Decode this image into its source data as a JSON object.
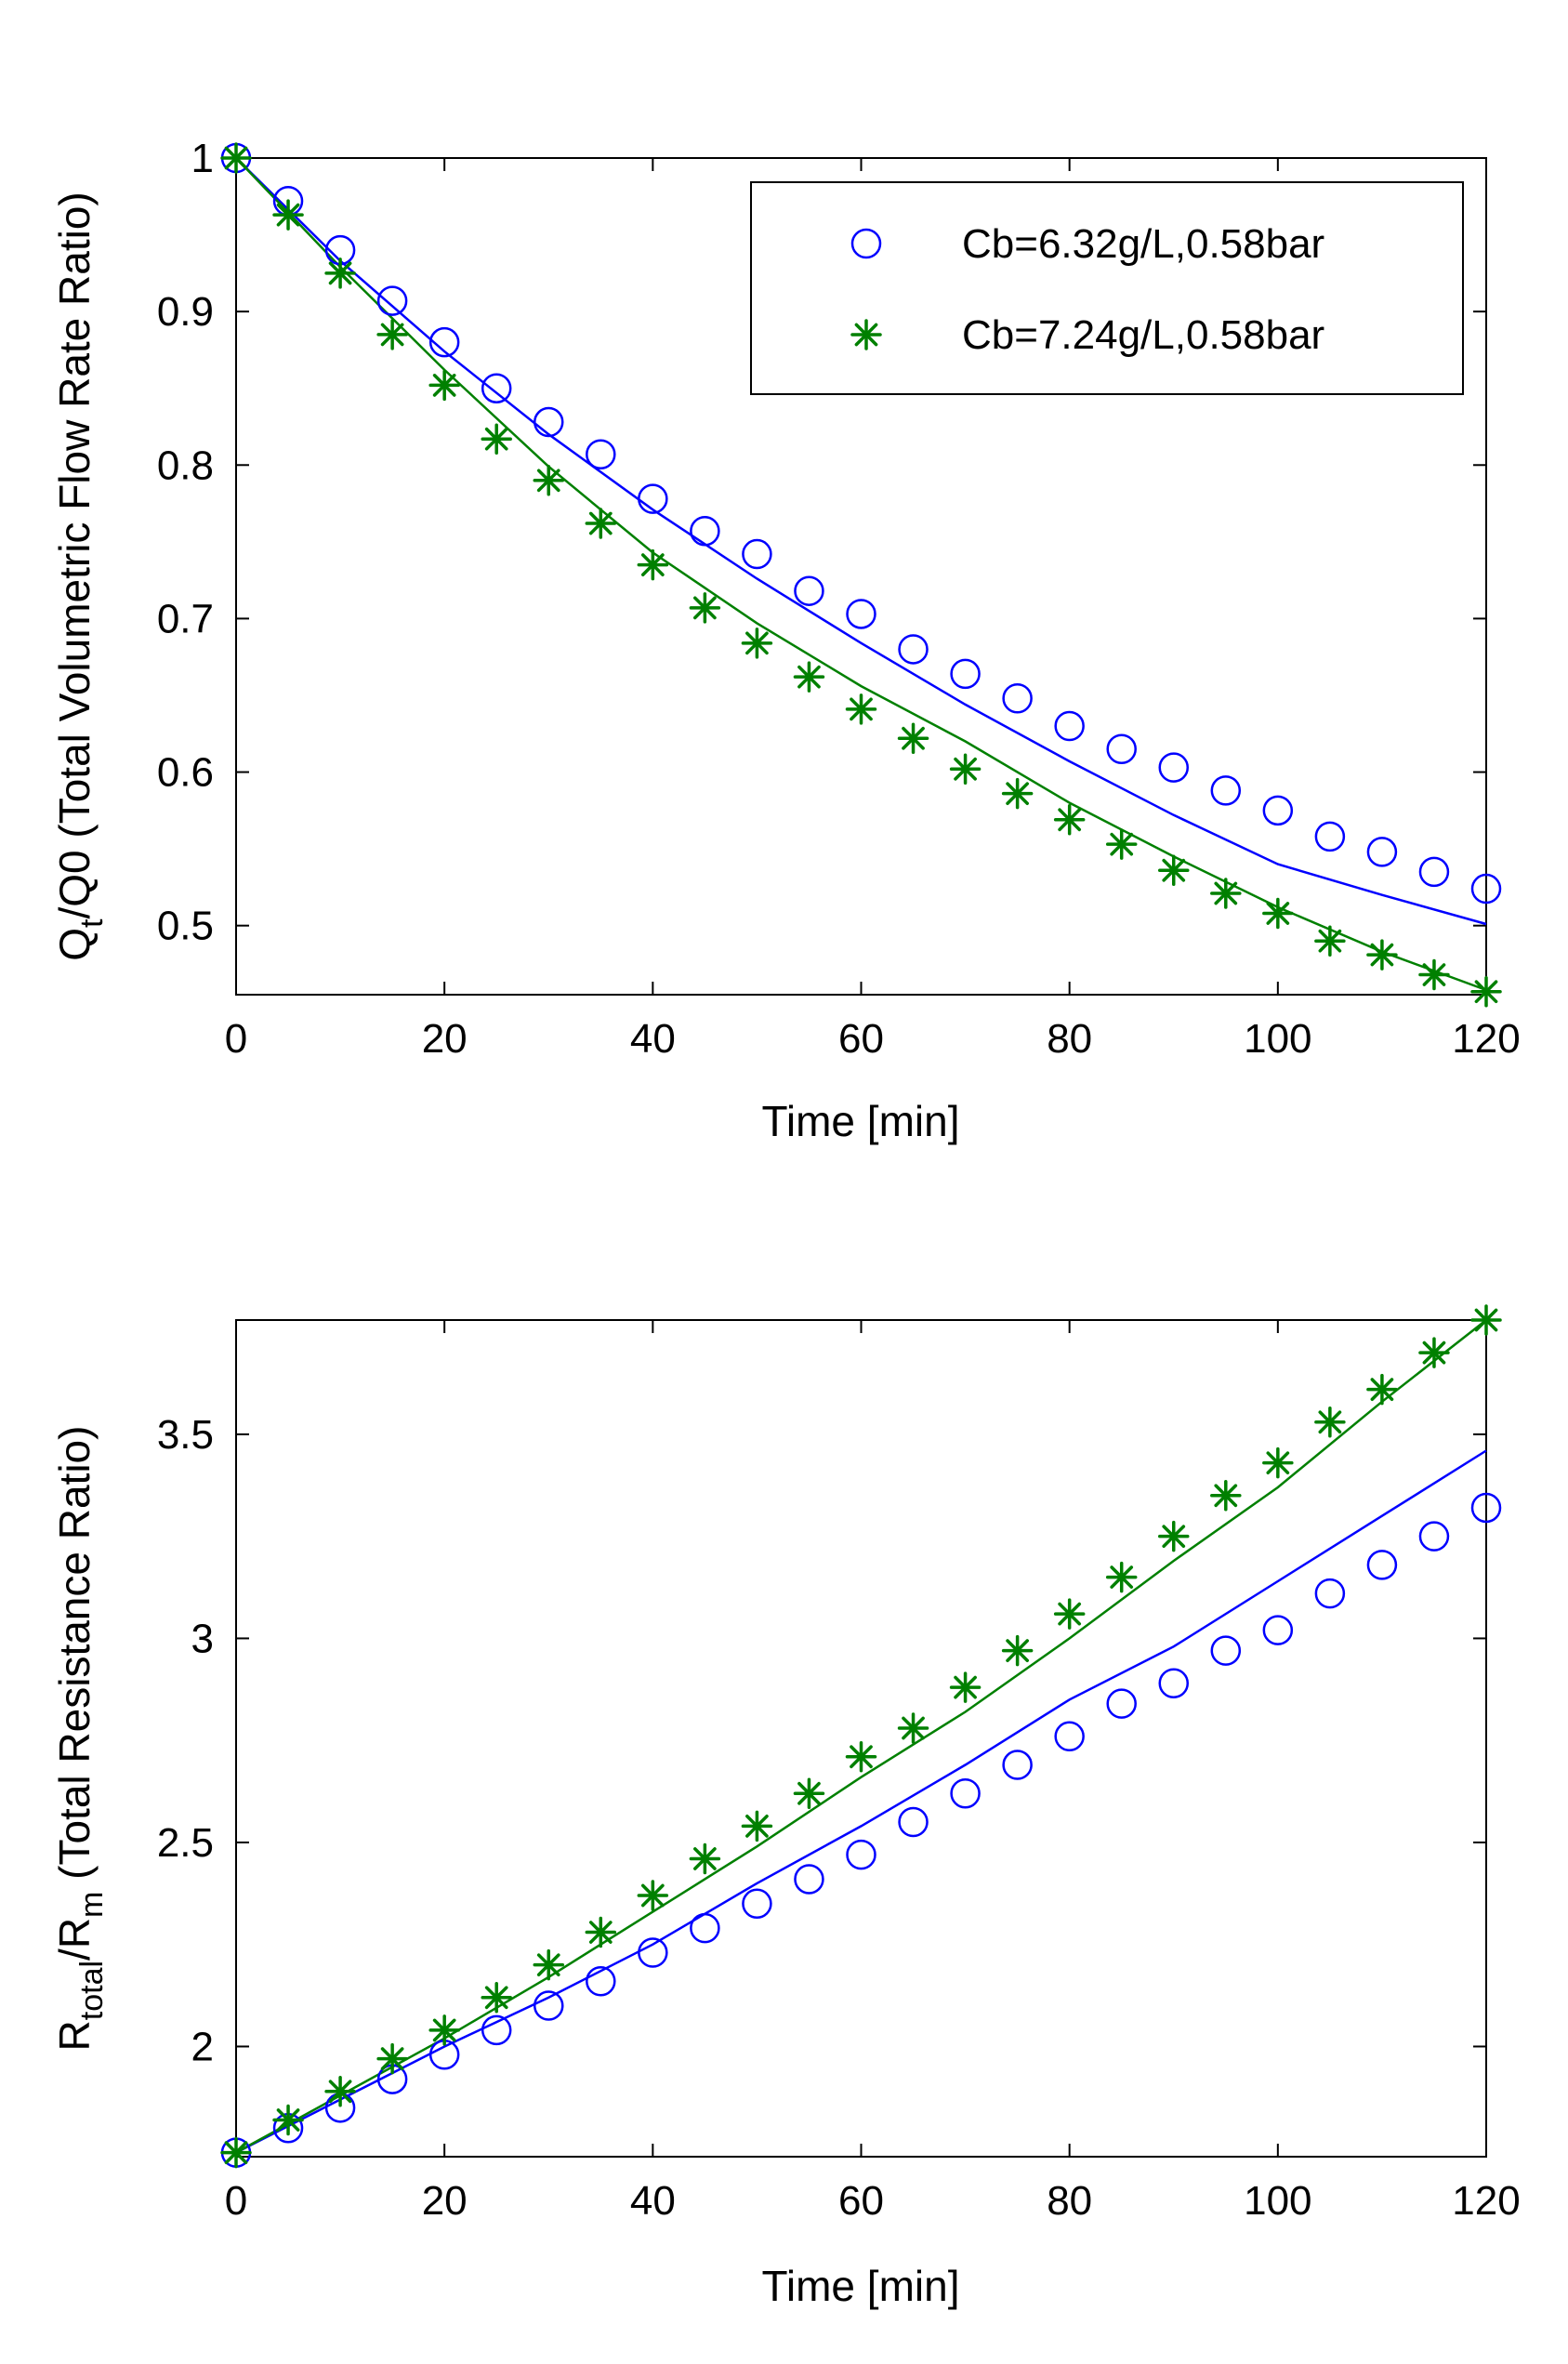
{
  "chart_data": [
    {
      "type": "scatter",
      "xlabel": "Time [min]",
      "ylabel": {
        "prefix": "Q",
        "subscript": "t",
        "suffix": "/Q0 (Total Volumetric Flow Rate Ratio)"
      },
      "xlim": [
        0,
        120
      ],
      "ylim": [
        0.455,
        1.0
      ],
      "xticks": [
        0,
        20,
        40,
        60,
        80,
        100,
        120
      ],
      "xtick_labels": [
        "0",
        "20",
        "40",
        "60",
        "80",
        "100",
        "120"
      ],
      "yticks": [
        0.5,
        0.6,
        0.7,
        0.8,
        0.9,
        1.0
      ],
      "ytick_labels": [
        "0.5",
        "0.6",
        "0.7",
        "0.8",
        "0.9",
        "1"
      ],
      "grid": false,
      "legend_position": "top-right",
      "series": [
        {
          "name": "Cb=6.32g/L,0.58bar",
          "marker": "circle",
          "color": "#0000ff",
          "x": [
            0,
            5,
            10,
            15,
            20,
            25,
            30,
            35,
            40,
            45,
            50,
            55,
            60,
            65,
            70,
            75,
            80,
            85,
            90,
            95,
            100,
            105,
            110,
            115,
            120
          ],
          "y": [
            1.0,
            0.972,
            0.94,
            0.907,
            0.88,
            0.85,
            0.828,
            0.807,
            0.778,
            0.757,
            0.742,
            0.718,
            0.703,
            0.68,
            0.664,
            0.648,
            0.63,
            0.615,
            0.603,
            0.588,
            0.575,
            0.558,
            0.548,
            0.535,
            0.524
          ],
          "fit": {
            "x": [
              0,
              10,
              20,
              30,
              40,
              50,
              60,
              70,
              80,
              90,
              100,
              110,
              120
            ],
            "y": [
              1.0,
              0.933,
              0.874,
              0.82,
              0.771,
              0.726,
              0.684,
              0.644,
              0.607,
              0.572,
              0.54,
              0.52,
              0.501
            ]
          }
        },
        {
          "name": "Cb=7.24g/L,0.58bar",
          "marker": "star",
          "color": "#008000",
          "x": [
            0,
            5,
            10,
            15,
            20,
            25,
            30,
            35,
            40,
            45,
            50,
            55,
            60,
            65,
            70,
            75,
            80,
            85,
            90,
            95,
            100,
            105,
            110,
            115,
            120
          ],
          "y": [
            1.0,
            0.963,
            0.925,
            0.885,
            0.852,
            0.817,
            0.79,
            0.762,
            0.735,
            0.707,
            0.684,
            0.662,
            0.641,
            0.622,
            0.602,
            0.586,
            0.569,
            0.553,
            0.536,
            0.521,
            0.508,
            0.49,
            0.481,
            0.468,
            0.457
          ],
          "fit": {
            "x": [
              0,
              10,
              20,
              30,
              40,
              50,
              60,
              70,
              80,
              90,
              100,
              110,
              120
            ],
            "y": [
              1.0,
              0.929,
              0.862,
              0.799,
              0.743,
              0.697,
              0.656,
              0.62,
              0.58,
              0.545,
              0.512,
              0.483,
              0.458
            ]
          }
        }
      ]
    },
    {
      "type": "scatter",
      "xlabel": "Time [min]",
      "ylabel": {
        "prefix": "R",
        "subscript": "total",
        "middle": "/R",
        "subscript2": "m",
        "suffix": " (Total Resistance Ratio)"
      },
      "xlim": [
        0,
        120
      ],
      "ylim": [
        1.73,
        3.78
      ],
      "xticks": [
        0,
        20,
        40,
        60,
        80,
        100,
        120
      ],
      "xtick_labels": [
        "0",
        "20",
        "40",
        "60",
        "80",
        "100",
        "120"
      ],
      "yticks": [
        2.0,
        2.5,
        3.0,
        3.5
      ],
      "ytick_labels": [
        "2",
        "2.5",
        "3",
        "3.5"
      ],
      "grid": false,
      "series": [
        {
          "name": "Cb=6.32g/L,0.58bar",
          "marker": "circle",
          "color": "#0000ff",
          "x": [
            0,
            5,
            10,
            15,
            20,
            25,
            30,
            35,
            40,
            45,
            50,
            55,
            60,
            65,
            70,
            75,
            80,
            85,
            90,
            95,
            100,
            105,
            110,
            115,
            120
          ],
          "y": [
            1.74,
            1.8,
            1.85,
            1.92,
            1.98,
            2.04,
            2.1,
            2.16,
            2.23,
            2.29,
            2.35,
            2.41,
            2.47,
            2.55,
            2.62,
            2.69,
            2.76,
            2.84,
            2.89,
            2.97,
            3.02,
            3.11,
            3.18,
            3.25,
            3.32
          ],
          "fit": {
            "x": [
              0,
              10,
              20,
              30,
              40,
              50,
              60,
              70,
              80,
              90,
              100,
              110,
              120
            ],
            "y": [
              1.74,
              1.87,
              2.0,
              2.12,
              2.25,
              2.4,
              2.54,
              2.69,
              2.85,
              2.98,
              3.14,
              3.3,
              3.46
            ]
          }
        },
        {
          "name": "Cb=7.24g/L,0.58bar",
          "marker": "star",
          "color": "#008000",
          "x": [
            0,
            5,
            10,
            15,
            20,
            25,
            30,
            35,
            40,
            45,
            50,
            55,
            60,
            65,
            70,
            75,
            80,
            85,
            90,
            95,
            100,
            105,
            110,
            115,
            120
          ],
          "y": [
            1.74,
            1.82,
            1.89,
            1.97,
            2.04,
            2.12,
            2.2,
            2.28,
            2.37,
            2.46,
            2.54,
            2.62,
            2.71,
            2.78,
            2.88,
            2.97,
            3.06,
            3.15,
            3.25,
            3.35,
            3.43,
            3.53,
            3.61,
            3.7,
            3.78
          ],
          "fit": {
            "x": [
              0,
              10,
              20,
              30,
              40,
              50,
              60,
              70,
              80,
              90,
              100,
              110,
              120
            ],
            "y": [
              1.74,
              1.88,
              2.02,
              2.17,
              2.33,
              2.49,
              2.66,
              2.82,
              3.0,
              3.19,
              3.37,
              3.58,
              3.78
            ]
          }
        }
      ]
    }
  ]
}
